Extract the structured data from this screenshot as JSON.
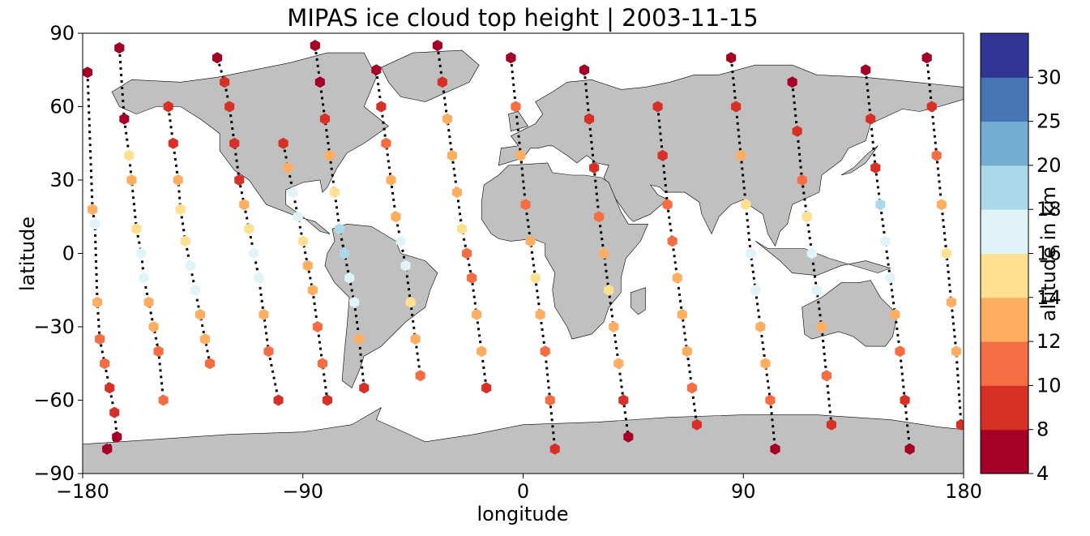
{
  "chart_data": {
    "type": "scatter",
    "title": "MIPAS ice cloud top height | 2003-11-15",
    "xlabel": "longitude",
    "ylabel": "latitude",
    "xlim": [
      -180,
      180
    ],
    "ylim": [
      -90,
      90
    ],
    "xticks": [
      -180,
      -90,
      0,
      90,
      180
    ],
    "xtick_labels": [
      "−180",
      "−90",
      "0",
      "90",
      "180"
    ],
    "yticks": [
      -90,
      -60,
      -30,
      0,
      30,
      60,
      90
    ],
    "ytick_labels": [
      "−90",
      "−60",
      "−30",
      "0",
      "30",
      "60",
      "90"
    ],
    "grid": false,
    "land_color": "#c0c0c0",
    "colorbar": {
      "label": "altitude in km",
      "bounds": [
        4,
        8,
        10,
        12,
        14,
        16,
        18,
        20,
        25,
        30
      ],
      "tick_labels": [
        "4",
        "8",
        "10",
        "12",
        "14",
        "16",
        "18",
        "20",
        "25",
        "30"
      ],
      "colors": [
        "#a50026",
        "#d73027",
        "#f46d43",
        "#fdae61",
        "#fee090",
        "#e0f3f8",
        "#abd9e9",
        "#74add1",
        "#4575b4",
        "#313695"
      ]
    },
    "series": [
      {
        "x": [
          -178,
          -176,
          -175,
          -174,
          -173,
          -171,
          -169,
          -167,
          -166,
          -170
        ],
        "y": [
          74,
          18,
          12,
          -20,
          -35,
          -45,
          -55,
          -65,
          -75,
          -80
        ],
        "values": [
          7,
          12,
          17,
          13,
          11,
          10,
          9,
          8,
          7,
          6
        ]
      },
      {
        "x": [
          -165,
          -163,
          -161,
          -160,
          -158,
          -156,
          -155,
          -153,
          -151,
          -149,
          -147
        ],
        "y": [
          84,
          55,
          40,
          30,
          10,
          0,
          -10,
          -20,
          -30,
          -40,
          -60
        ],
        "values": [
          6,
          7,
          14,
          13,
          14,
          17,
          16,
          13,
          12,
          11,
          10
        ]
      },
      {
        "x": [
          -145,
          -143,
          -141,
          -140,
          -138,
          -136,
          -134,
          -132,
          -130,
          -128
        ],
        "y": [
          60,
          45,
          30,
          18,
          5,
          -5,
          -15,
          -25,
          -35,
          -45
        ],
        "values": [
          9,
          8,
          13,
          14,
          14,
          17,
          16,
          13,
          12,
          11
        ]
      },
      {
        "x": [
          -125,
          -122,
          -120,
          -118,
          -116,
          -114,
          -112,
          -110,
          -108,
          -106,
          -104,
          -100
        ],
        "y": [
          80,
          70,
          60,
          45,
          30,
          20,
          10,
          0,
          -10,
          -25,
          -40,
          -60
        ],
        "values": [
          6,
          8,
          9,
          9,
          8,
          13,
          14,
          17,
          17,
          13,
          11,
          8
        ]
      },
      {
        "x": [
          -98,
          -96,
          -94,
          -92,
          -90,
          -88,
          -86,
          -84,
          -82,
          -80
        ],
        "y": [
          45,
          35,
          25,
          15,
          5,
          -5,
          -15,
          -30,
          -45,
          -60
        ],
        "values": [
          8,
          13,
          16,
          17,
          14,
          13,
          12,
          11,
          10,
          9
        ]
      },
      {
        "x": [
          -85,
          -83,
          -81,
          -79,
          -77,
          -75,
          -73,
          -71,
          -69,
          -67,
          -65
        ],
        "y": [
          85,
          70,
          55,
          40,
          25,
          10,
          0,
          -10,
          -20,
          -35,
          -55
        ],
        "values": [
          6,
          7,
          8,
          13,
          14,
          18,
          19,
          17,
          16,
          12,
          9
        ]
      },
      {
        "x": [
          -60,
          -58,
          -56,
          -54,
          -52,
          -50,
          -48,
          -46,
          -44,
          -42
        ],
        "y": [
          75,
          60,
          45,
          30,
          15,
          5,
          -5,
          -20,
          -35,
          -50
        ],
        "values": [
          7,
          9,
          11,
          12,
          13,
          16,
          17,
          14,
          12,
          10
        ]
      },
      {
        "x": [
          -35,
          -33,
          -31,
          -29,
          -27,
          -25,
          -23,
          -21,
          -19,
          -17,
          -15
        ],
        "y": [
          85,
          70,
          55,
          40,
          25,
          10,
          0,
          -10,
          -25,
          -40,
          -55
        ],
        "values": [
          6,
          8,
          13,
          12,
          13,
          14,
          11,
          10,
          13,
          12,
          8
        ]
      },
      {
        "x": [
          -5,
          -3,
          -1,
          1,
          3,
          5,
          7,
          9,
          11,
          13
        ],
        "y": [
          80,
          60,
          40,
          20,
          5,
          -10,
          -25,
          -40,
          -60,
          -80
        ],
        "values": [
          6,
          10,
          12,
          11,
          13,
          14,
          13,
          11,
          10,
          8
        ]
      },
      {
        "x": [
          25,
          27,
          29,
          31,
          33,
          35,
          37,
          39,
          41,
          43
        ],
        "y": [
          75,
          55,
          35,
          15,
          0,
          -15,
          -30,
          -45,
          -60,
          -75
        ],
        "values": [
          7,
          8,
          9,
          10,
          12,
          14,
          13,
          12,
          9,
          7
        ]
      },
      {
        "x": [
          55,
          57,
          59,
          61,
          63,
          65,
          67,
          69,
          71
        ],
        "y": [
          60,
          40,
          20,
          5,
          -10,
          -25,
          -40,
          -55,
          -70
        ],
        "values": [
          8,
          9,
          10,
          11,
          12,
          13,
          12,
          11,
          9
        ]
      },
      {
        "x": [
          85,
          87,
          89,
          91,
          93,
          95,
          97,
          99,
          101,
          103
        ],
        "y": [
          80,
          60,
          40,
          20,
          0,
          -15,
          -30,
          -45,
          -60,
          -80
        ],
        "values": [
          7,
          8,
          12,
          14,
          17,
          16,
          13,
          12,
          10,
          6
        ]
      },
      {
        "x": [
          110,
          112,
          114,
          116,
          118,
          120,
          122,
          124,
          126
        ],
        "y": [
          70,
          50,
          30,
          15,
          0,
          -15,
          -30,
          -50,
          -70
        ],
        "values": [
          7,
          9,
          10,
          14,
          16,
          17,
          13,
          11,
          9
        ]
      },
      {
        "x": [
          140,
          142,
          144,
          146,
          148,
          150,
          152,
          154,
          156,
          158
        ],
        "y": [
          75,
          55,
          35,
          20,
          5,
          -10,
          -25,
          -40,
          -60,
          -80
        ],
        "values": [
          6,
          8,
          9,
          18,
          17,
          16,
          13,
          11,
          9,
          7
        ]
      },
      {
        "x": [
          165,
          167,
          169,
          171,
          173,
          175,
          177,
          179
        ],
        "y": [
          80,
          60,
          40,
          20,
          0,
          -20,
          -40,
          -70
        ],
        "values": [
          6,
          9,
          10,
          13,
          14,
          13,
          12,
          8
        ]
      }
    ]
  }
}
